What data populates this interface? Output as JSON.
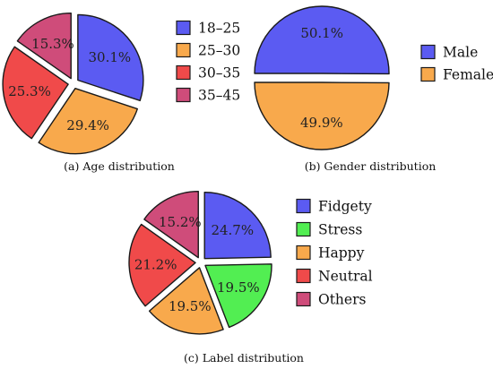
{
  "colors": {
    "blue": "#5b5bf2",
    "orange": "#f8a94c",
    "red": "#f04a4a",
    "magenta": "#cf4c7a",
    "green": "#52ee52",
    "stroke": "#1a1a1a"
  },
  "chart_data": [
    {
      "type": "pie",
      "title": "(a)  Age distribution",
      "categories": [
        "18–25",
        "25–30",
        "30–35",
        "35–45"
      ],
      "values": [
        30.1,
        29.4,
        25.3,
        15.3
      ],
      "labels": [
        "30.1%",
        "29.4%",
        "25.3%",
        "15.3%"
      ],
      "colors": [
        "#5b5bf2",
        "#f8a94c",
        "#f04a4a",
        "#cf4c7a"
      ],
      "exploded": true,
      "legend": "right"
    },
    {
      "type": "pie",
      "title": "(b)  Gender distribution",
      "categories": [
        "Male",
        "Female"
      ],
      "values": [
        50.1,
        49.9
      ],
      "labels": [
        "50.1%",
        "49.9%"
      ],
      "colors": [
        "#5b5bf2",
        "#f8a94c"
      ],
      "exploded": true,
      "legend": "right"
    },
    {
      "type": "pie",
      "title": "(c)  Label distribution",
      "categories": [
        "Fidgety",
        "Stress",
        "Happy",
        "Neutral",
        "Others"
      ],
      "values": [
        24.7,
        19.5,
        19.5,
        21.2,
        15.2
      ],
      "labels": [
        "24.7%",
        "19.5%",
        "19.5%",
        "21.2%",
        "15.2%"
      ],
      "colors": [
        "#5b5bf2",
        "#52ee52",
        "#f8a94c",
        "#f04a4a",
        "#cf4c7a"
      ],
      "exploded": true,
      "legend": "right"
    }
  ]
}
